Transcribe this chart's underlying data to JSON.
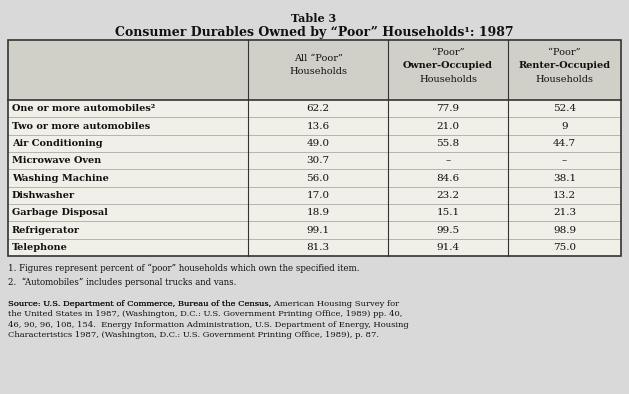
{
  "title_line1": "Table 3",
  "title_line2": "Consumer Durables Owned by “Poor” Households¹: 1987",
  "col_headers_line1": [
    "All “Poor”",
    "“Poor”",
    "“Poor”"
  ],
  "col_headers_line2": [
    "Households",
    "Owner-Occupied",
    "Renter-Occupied"
  ],
  "col_headers_line3": [
    "",
    "Households",
    "Households"
  ],
  "row_labels": [
    "One or more automobiles²",
    "Two or more automobiles",
    "Air Conditioning",
    "Microwave Oven",
    "Washing Machine",
    "Dishwasher",
    "Garbage Disposal",
    "Refrigerator",
    "Telephone"
  ],
  "data": [
    [
      "62.2",
      "77.9",
      "52.4"
    ],
    [
      "13.6",
      "21.0",
      "9"
    ],
    [
      "49.0",
      "55.8",
      "44.7"
    ],
    [
      "30.7",
      "–",
      "–"
    ],
    [
      "56.0",
      "84.6",
      "38.1"
    ],
    [
      "17.0",
      "23.2",
      "13.2"
    ],
    [
      "18.9",
      "15.1",
      "21.3"
    ],
    [
      "99.1",
      "99.5",
      "98.9"
    ],
    [
      "81.3",
      "91.4",
      "75.0"
    ]
  ],
  "footnote1": "1. Figures represent percent of “poor” households which own the specified item.",
  "footnote2": "2.  “Automobiles” includes personal trucks and vans.",
  "source_normal1": "Source: U.S. Department of Commerce, Bureau of the Census, ",
  "source_italic": "American Housing Survey for\nthe United States in 1987",
  "source_normal2": ", (Washington, D.C.: U.S. Government Printing Office, 1989) pp. 40,\n46, 90, 96, 108, 154.  Energy Information Administration, U.S. Department of Energy, Housing\nCharacteristics 1987, (Washington, D.C.: U.S. Government Printing Office, 1989), p. 87.",
  "bg_color": "#d9d9d9",
  "table_bg": "#f0efe8",
  "header_bg": "#d0cfc8",
  "border_color": "#333333",
  "text_color": "#111111"
}
